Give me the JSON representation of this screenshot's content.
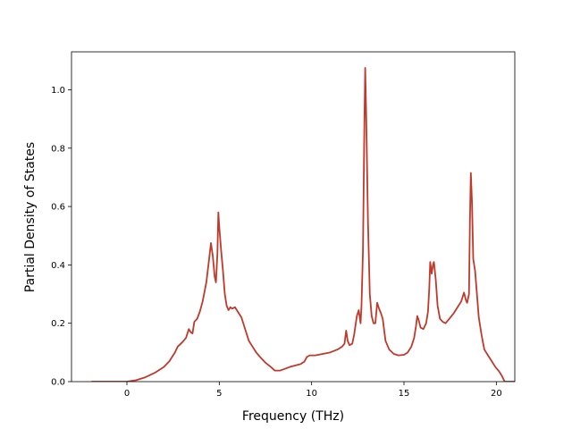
{
  "chart_data": {
    "type": "line",
    "title": "",
    "xlabel": "Frequency (THz)",
    "ylabel": "Partial Density of States",
    "xlim": [
      -3.0,
      21.0
    ],
    "ylim": [
      0.0,
      1.13
    ],
    "xticks": [
      0,
      5,
      10,
      15,
      20
    ],
    "yticks": [
      0.0,
      0.2,
      0.4,
      0.6,
      0.8,
      1.0
    ],
    "xtick_labels": [
      "0",
      "5",
      "10",
      "15",
      "20"
    ],
    "ytick_labels": [
      "0.0",
      "0.2",
      "0.4",
      "0.6",
      "0.8",
      "1.0"
    ],
    "grid": false,
    "legend": "none",
    "line_color": "#c0392b",
    "series": [
      {
        "points": [
          [
            -1.9,
            0.0
          ],
          [
            0.0,
            0.0
          ],
          [
            0.5,
            0.005
          ],
          [
            1.0,
            0.015
          ],
          [
            1.5,
            0.03
          ],
          [
            2.0,
            0.05
          ],
          [
            2.3,
            0.07
          ],
          [
            2.6,
            0.1
          ],
          [
            2.75,
            0.12
          ],
          [
            3.0,
            0.135
          ],
          [
            3.2,
            0.15
          ],
          [
            3.35,
            0.18
          ],
          [
            3.45,
            0.17
          ],
          [
            3.55,
            0.165
          ],
          [
            3.65,
            0.205
          ],
          [
            3.8,
            0.215
          ],
          [
            3.95,
            0.24
          ],
          [
            4.1,
            0.275
          ],
          [
            4.3,
            0.34
          ],
          [
            4.45,
            0.42
          ],
          [
            4.55,
            0.475
          ],
          [
            4.65,
            0.43
          ],
          [
            4.75,
            0.36
          ],
          [
            4.82,
            0.34
          ],
          [
            4.9,
            0.44
          ],
          [
            4.95,
            0.58
          ],
          [
            5.0,
            0.53
          ],
          [
            5.1,
            0.45
          ],
          [
            5.2,
            0.38
          ],
          [
            5.3,
            0.3
          ],
          [
            5.4,
            0.26
          ],
          [
            5.5,
            0.245
          ],
          [
            5.6,
            0.255
          ],
          [
            5.7,
            0.25
          ],
          [
            5.85,
            0.255
          ],
          [
            6.0,
            0.24
          ],
          [
            6.2,
            0.22
          ],
          [
            6.4,
            0.18
          ],
          [
            6.6,
            0.14
          ],
          [
            6.8,
            0.12
          ],
          [
            7.0,
            0.1
          ],
          [
            7.2,
            0.085
          ],
          [
            7.5,
            0.065
          ],
          [
            7.8,
            0.05
          ],
          [
            8.0,
            0.038
          ],
          [
            8.3,
            0.038
          ],
          [
            8.6,
            0.045
          ],
          [
            8.8,
            0.05
          ],
          [
            9.1,
            0.055
          ],
          [
            9.4,
            0.06
          ],
          [
            9.6,
            0.068
          ],
          [
            9.75,
            0.085
          ],
          [
            9.9,
            0.09
          ],
          [
            10.2,
            0.09
          ],
          [
            10.6,
            0.095
          ],
          [
            11.0,
            0.1
          ],
          [
            11.4,
            0.11
          ],
          [
            11.65,
            0.12
          ],
          [
            11.78,
            0.13
          ],
          [
            11.87,
            0.175
          ],
          [
            11.95,
            0.14
          ],
          [
            12.05,
            0.125
          ],
          [
            12.2,
            0.13
          ],
          [
            12.3,
            0.16
          ],
          [
            12.45,
            0.225
          ],
          [
            12.55,
            0.245
          ],
          [
            12.65,
            0.2
          ],
          [
            12.7,
            0.26
          ],
          [
            12.78,
            0.45
          ],
          [
            12.85,
            0.85
          ],
          [
            12.9,
            1.075
          ],
          [
            12.95,
            0.93
          ],
          [
            13.05,
            0.55
          ],
          [
            13.15,
            0.3
          ],
          [
            13.25,
            0.225
          ],
          [
            13.35,
            0.2
          ],
          [
            13.45,
            0.2
          ],
          [
            13.55,
            0.27
          ],
          [
            13.65,
            0.25
          ],
          [
            13.75,
            0.235
          ],
          [
            13.85,
            0.215
          ],
          [
            14.0,
            0.14
          ],
          [
            14.2,
            0.11
          ],
          [
            14.45,
            0.095
          ],
          [
            14.7,
            0.09
          ],
          [
            15.0,
            0.092
          ],
          [
            15.2,
            0.1
          ],
          [
            15.4,
            0.12
          ],
          [
            15.55,
            0.15
          ],
          [
            15.65,
            0.19
          ],
          [
            15.72,
            0.225
          ],
          [
            15.8,
            0.21
          ],
          [
            15.9,
            0.185
          ],
          [
            16.05,
            0.18
          ],
          [
            16.2,
            0.2
          ],
          [
            16.3,
            0.24
          ],
          [
            16.37,
            0.32
          ],
          [
            16.42,
            0.41
          ],
          [
            16.5,
            0.37
          ],
          [
            16.57,
            0.4
          ],
          [
            16.62,
            0.41
          ],
          [
            16.72,
            0.35
          ],
          [
            16.82,
            0.26
          ],
          [
            16.95,
            0.215
          ],
          [
            17.1,
            0.205
          ],
          [
            17.25,
            0.2
          ],
          [
            17.45,
            0.215
          ],
          [
            17.7,
            0.235
          ],
          [
            17.9,
            0.255
          ],
          [
            18.1,
            0.275
          ],
          [
            18.25,
            0.305
          ],
          [
            18.35,
            0.28
          ],
          [
            18.42,
            0.27
          ],
          [
            18.52,
            0.3
          ],
          [
            18.57,
            0.55
          ],
          [
            18.62,
            0.715
          ],
          [
            18.68,
            0.62
          ],
          [
            18.75,
            0.42
          ],
          [
            18.85,
            0.38
          ],
          [
            18.95,
            0.3
          ],
          [
            19.05,
            0.22
          ],
          [
            19.2,
            0.16
          ],
          [
            19.35,
            0.11
          ],
          [
            19.55,
            0.09
          ],
          [
            19.75,
            0.07
          ],
          [
            19.95,
            0.05
          ],
          [
            20.15,
            0.035
          ],
          [
            20.3,
            0.02
          ],
          [
            20.45,
            0.0
          ],
          [
            21.15,
            0.0
          ]
        ]
      }
    ]
  }
}
